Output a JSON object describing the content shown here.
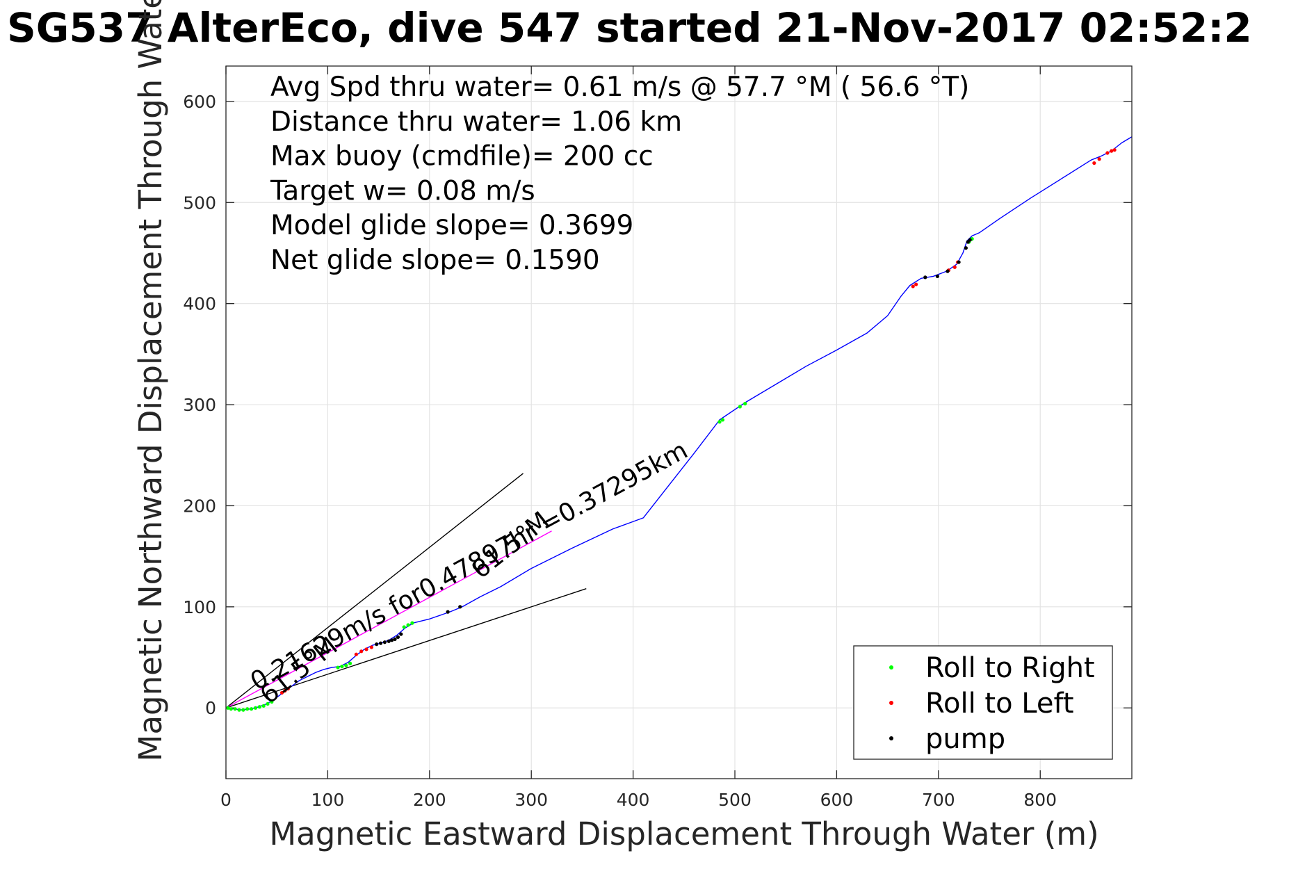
{
  "colors": {
    "track": "#0000ff",
    "roll_right": "#00ff00",
    "roll_left": "#ff0000",
    "pump": "#000000",
    "current_vector": "#ff00ff",
    "heading_lines": "#000000",
    "vertical_marks": "#000080"
  },
  "chart_data": {
    "type": "line",
    "title": "SG537 AlterEco, dive 547 started 21-Nov-2017 02:52:2",
    "xlabel": "Magnetic Eastward Displacement Through Water (m)",
    "ylabel": "Magnetic Northward Displacement Through Water (",
    "xlim": [
      0,
      890
    ],
    "ylim": [
      -70,
      635
    ],
    "xticks": [
      0,
      100,
      200,
      300,
      400,
      500,
      600,
      700,
      800
    ],
    "xtick_labels": [
      "0",
      "100",
      "200",
      "300",
      "400",
      "500",
      "600",
      "700",
      "800"
    ],
    "yticks": [
      0,
      100,
      200,
      300,
      400,
      500,
      600
    ],
    "ytick_labels": [
      "0",
      "100",
      "200",
      "300",
      "400",
      "500",
      "600"
    ],
    "grid": true,
    "legend_position": "bottom-right",
    "info_lines": [
      "Avg Spd thru water=  0.61 m/s @  57.7 °M ( 56.6 °T)",
      "Distance thru water=  1.06 km",
      "Max buoy (cmdfile)= 200 cc",
      "Target w= 0.08 m/s",
      "Model glide slope= 0.3699",
      "Net glide slope= 0.1590"
    ],
    "annotations": {
      "current": "0.21629m/s for0.47897hr =0.37295km",
      "heading_top": "61.5°M",
      "heading_bottom": "61.5°M"
    },
    "series": [
      {
        "name": "track",
        "x": [
          0,
          8,
          16,
          24,
          32,
          40,
          48,
          56,
          64,
          72,
          80,
          88,
          96,
          104,
          112,
          120,
          128,
          136,
          144,
          152,
          160,
          168,
          176,
          184,
          200,
          220,
          232,
          250,
          270,
          300,
          340,
          380,
          410,
          435,
          460,
          485,
          510,
          540,
          570,
          600,
          630,
          650,
          663,
          672,
          683,
          695,
          708,
          718,
          724,
          728,
          733,
          740,
          760,
          790,
          820,
          850,
          860,
          870,
          880,
          890
        ],
        "y": [
          0,
          -1,
          -2,
          -1,
          1,
          4,
          9,
          15,
          21,
          27,
          31,
          35,
          38,
          40,
          41,
          45,
          52,
          58,
          62,
          64,
          67,
          72,
          79,
          84,
          88,
          95,
          100,
          110,
          120,
          138,
          158,
          177,
          188,
          220,
          252,
          285,
          302,
          320,
          338,
          354,
          371,
          388,
          407,
          418,
          425,
          427,
          432,
          439,
          450,
          462,
          467,
          470,
          484,
          504,
          523,
          542,
          546,
          551,
          559,
          565
        ]
      },
      {
        "name": "Roll to Right",
        "x": [
          2,
          5,
          9,
          13,
          17,
          21,
          25,
          29,
          33,
          37,
          41,
          45,
          110,
          114,
          118,
          122,
          175,
          179,
          183,
          485,
          488,
          505,
          510,
          730,
          733
        ],
        "y": [
          0,
          -1,
          -1,
          -2,
          -2,
          -1,
          -1,
          0,
          1,
          2,
          4,
          6,
          40,
          41,
          42,
          44,
          80,
          82,
          84,
          283,
          285,
          298,
          301,
          461,
          464
        ]
      },
      {
        "name": "Roll to Left",
        "x": [
          55,
          58,
          61,
          128,
          133,
          138,
          143,
          675,
          678,
          710,
          716,
          719,
          853,
          858,
          866,
          870,
          873
        ],
        "y": [
          15,
          17,
          19,
          53,
          56,
          58,
          60,
          417,
          419,
          433,
          436,
          441,
          539,
          543,
          549,
          551,
          552
        ]
      },
      {
        "name": "pump",
        "x": [
          148,
          152,
          156,
          160,
          163,
          166,
          169,
          172,
          218,
          230,
          687,
          699,
          709,
          720,
          727,
          729,
          731
        ],
        "y": [
          63,
          64,
          65,
          66,
          67,
          68,
          70,
          73,
          95,
          100,
          426,
          427,
          432,
          441,
          455,
          461,
          463
        ]
      },
      {
        "name": "current_vector",
        "x": [
          0,
          320
        ],
        "y": [
          0,
          175
        ]
      },
      {
        "name": "heading_line_upper",
        "x": [
          0,
          292
        ],
        "y": [
          0,
          232
        ]
      },
      {
        "name": "heading_line_lower",
        "x": [
          0,
          354
        ],
        "y": [
          0,
          118
        ]
      }
    ],
    "legend": [
      {
        "label": "Roll to Right",
        "color": "#00ff00"
      },
      {
        "label": "Roll to Left",
        "color": "#ff0000"
      },
      {
        "label": "pump",
        "color": "#000000"
      }
    ]
  }
}
